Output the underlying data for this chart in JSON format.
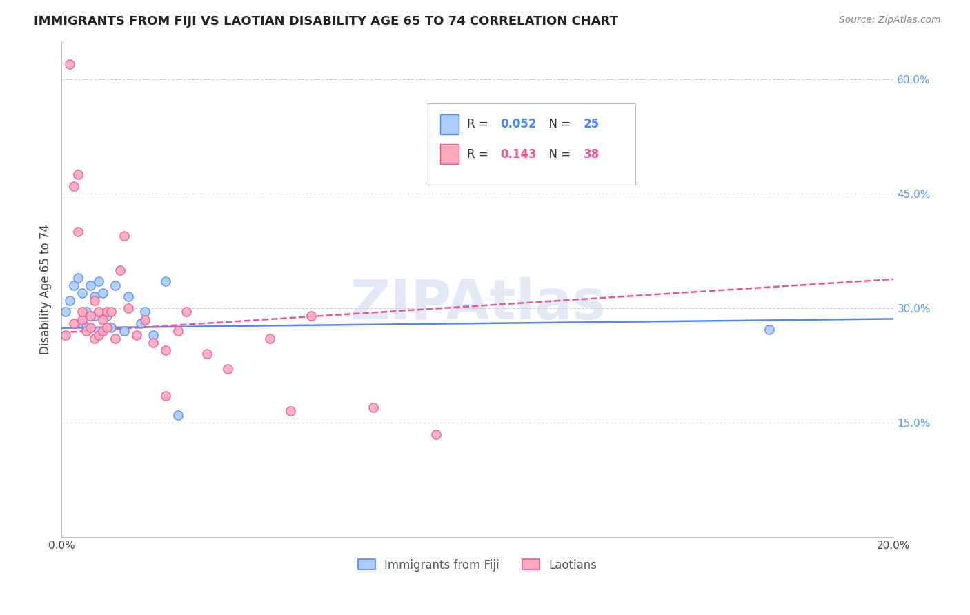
{
  "title": "IMMIGRANTS FROM FIJI VS LAOTIAN DISABILITY AGE 65 TO 74 CORRELATION CHART",
  "source": "Source: ZipAtlas.com",
  "ylabel": "Disability Age 65 to 74",
  "watermark": "ZIPAtlas",
  "fiji_R": 0.052,
  "fiji_N": 25,
  "laotian_R": 0.143,
  "laotian_N": 38,
  "fiji_color": "#aaccff",
  "laotian_color": "#ffaabb",
  "fiji_line_color": "#5588ee",
  "laotian_line_color": "#ee5599",
  "x_min": 0.0,
  "x_max": 0.2,
  "y_min": 0.0,
  "y_max": 0.65,
  "x_ticks": [
    0.0,
    0.04,
    0.08,
    0.12,
    0.16,
    0.2
  ],
  "x_tick_labels": [
    "0.0%",
    "",
    "",
    "",
    "",
    "20.0%"
  ],
  "y_ticks_right": [
    0.15,
    0.3,
    0.45,
    0.6
  ],
  "y_tick_labels_right": [
    "15.0%",
    "30.0%",
    "45.0%",
    "60.0%"
  ],
  "fiji_x": [
    0.001,
    0.002,
    0.003,
    0.004,
    0.005,
    0.005,
    0.006,
    0.006,
    0.007,
    0.008,
    0.008,
    0.009,
    0.009,
    0.01,
    0.011,
    0.012,
    0.013,
    0.015,
    0.016,
    0.019,
    0.02,
    0.022,
    0.025,
    0.028,
    0.17
  ],
  "fiji_y": [
    0.295,
    0.31,
    0.33,
    0.34,
    0.28,
    0.32,
    0.275,
    0.295,
    0.33,
    0.315,
    0.29,
    0.335,
    0.27,
    0.32,
    0.29,
    0.275,
    0.33,
    0.27,
    0.315,
    0.28,
    0.295,
    0.265,
    0.335,
    0.16,
    0.272
  ],
  "laotian_x": [
    0.001,
    0.002,
    0.003,
    0.003,
    0.004,
    0.004,
    0.005,
    0.005,
    0.006,
    0.007,
    0.007,
    0.008,
    0.008,
    0.009,
    0.009,
    0.01,
    0.01,
    0.011,
    0.011,
    0.012,
    0.013,
    0.014,
    0.015,
    0.016,
    0.018,
    0.02,
    0.022,
    0.025,
    0.025,
    0.028,
    0.03,
    0.035,
    0.04,
    0.05,
    0.055,
    0.06,
    0.075,
    0.09
  ],
  "laotian_y": [
    0.265,
    0.62,
    0.46,
    0.28,
    0.475,
    0.4,
    0.285,
    0.295,
    0.27,
    0.275,
    0.29,
    0.26,
    0.31,
    0.265,
    0.295,
    0.27,
    0.285,
    0.275,
    0.295,
    0.295,
    0.26,
    0.35,
    0.395,
    0.3,
    0.265,
    0.285,
    0.255,
    0.185,
    0.245,
    0.27,
    0.295,
    0.24,
    0.22,
    0.26,
    0.165,
    0.29,
    0.17,
    0.135
  ]
}
